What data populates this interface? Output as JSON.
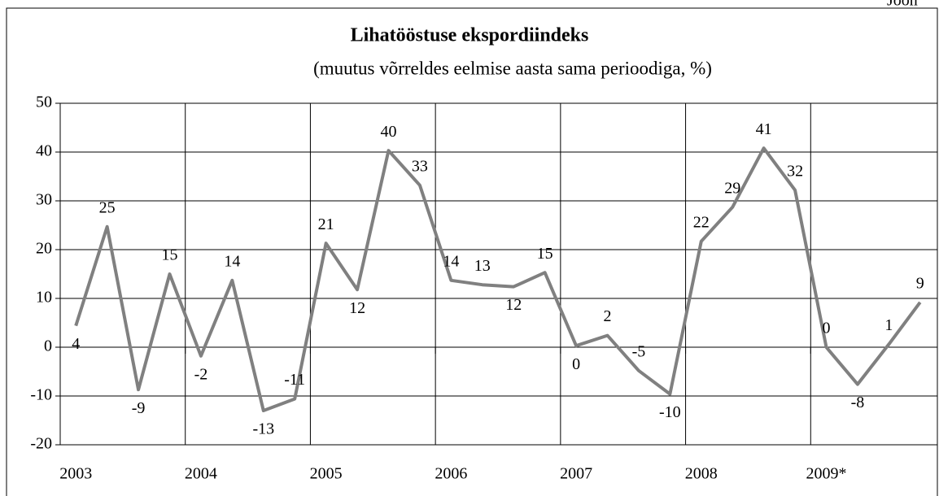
{
  "chart_data": {
    "type": "line",
    "caption": "Joon",
    "title": "Lihatööstuse ekspordiindeks",
    "subtitle": "(muutus võrreldes eelmise aasta sama perioodiga, %)",
    "categories": [
      "2003",
      null,
      null,
      null,
      "2004",
      null,
      null,
      null,
      "2005",
      null,
      null,
      null,
      "2006",
      null,
      null,
      null,
      "2007",
      null,
      null,
      null,
      "2008",
      null,
      null,
      null,
      "2009*",
      null,
      null,
      null
    ],
    "series": [
      {
        "name": "Lihatööstuse ekspordiindeks",
        "color": "#808080",
        "values": [
          4.4,
          24.7,
          -8.7,
          15,
          -1.8,
          13.7,
          -13,
          -10.6,
          21.3,
          11.8,
          40.3,
          33.2,
          13.7,
          12.8,
          12.4,
          15.3,
          0.3,
          2.4,
          -4.8,
          -9.6,
          21.7,
          28.7,
          40.8,
          32.2,
          0,
          -7.6,
          0.6,
          9.2
        ],
        "value_labels": [
          "4",
          "25",
          "-9",
          "15",
          "-2",
          "14",
          "-13",
          "-11",
          "21",
          "12",
          "40",
          "33",
          "14",
          "13",
          "12",
          "15",
          "0",
          "2",
          "-5",
          "-10",
          "22",
          "29",
          "41",
          "32",
          "0",
          "-8",
          "1",
          "9"
        ]
      }
    ],
    "ylim": [
      -20,
      50
    ],
    "yticks": [
      -20,
      -10,
      0,
      10,
      20,
      30,
      40,
      50
    ],
    "grid": true
  }
}
